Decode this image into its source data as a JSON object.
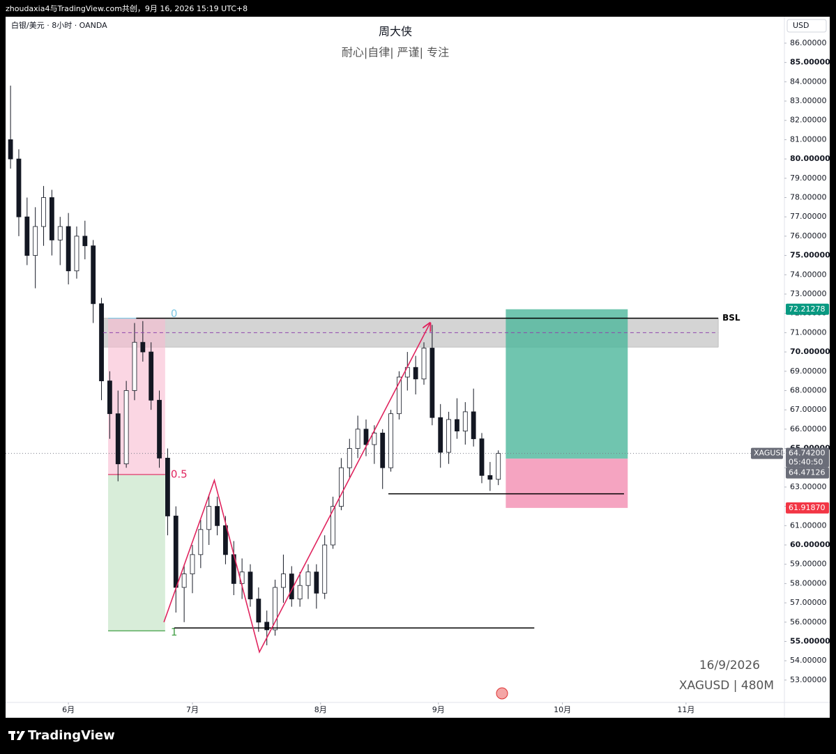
{
  "header": {
    "attribution": "zhoudaxia4与TradingView.com共创，9月 16, 2026 15:19 UTC+8",
    "symbol": "白银/美元 · 8小时 · OANDA",
    "title": "周大侠",
    "subtitle": "耐心|自律| 严谨| 专注",
    "currency": "USD"
  },
  "chart_data": {
    "type": "candlestick",
    "x": [
      -14,
      -12,
      -10,
      -8,
      -6,
      -4,
      -2,
      0,
      2,
      4,
      6,
      8,
      10,
      12,
      14,
      16,
      18,
      20,
      22,
      24,
      26,
      28,
      30,
      32,
      34,
      36,
      38,
      40,
      42,
      44,
      46,
      48,
      50,
      52,
      54,
      56,
      58,
      60,
      62,
      64,
      66,
      68,
      70,
      72,
      74,
      76,
      78,
      80,
      82,
      84,
      86,
      88,
      90,
      92,
      94,
      96,
      98,
      100,
      102,
      104
    ],
    "open": [
      81,
      80,
      77,
      75,
      76.5,
      78,
      75.8,
      76.5,
      74.2,
      76,
      75.5,
      72.5,
      68.5,
      66.8,
      64.2,
      68,
      70.5,
      70,
      67.5,
      64.5,
      61.5,
      57.8,
      58.5,
      59.5,
      60.8,
      62,
      61,
      59.5,
      58,
      58.6,
      57.2,
      56,
      55.6,
      57.8,
      58.5,
      57.2,
      57.9,
      58.6,
      57.5,
      60,
      62,
      64,
      65,
      66,
      65.2,
      65.8,
      64,
      66.8,
      68.7,
      69.2,
      68.6,
      70.2,
      66.6,
      64.8,
      66.5,
      65.9,
      66.9,
      65.5,
      63.6,
      63.4
    ],
    "high": [
      83.8,
      80.5,
      78,
      77.5,
      78.6,
      78.4,
      77,
      77.2,
      76.5,
      76.8,
      75.8,
      72.8,
      69,
      68,
      68.5,
      71.5,
      71.6,
      70.5,
      68,
      65,
      62,
      59,
      60,
      61.3,
      62.6,
      62.5,
      61.5,
      60.2,
      59.3,
      59,
      57.8,
      56.6,
      58.2,
      59.5,
      58.9,
      58.6,
      59,
      59,
      60.5,
      62.5,
      64.5,
      65.5,
      66.7,
      66.5,
      66.2,
      66,
      67,
      69,
      70,
      69.8,
      70.5,
      71.4,
      67.3,
      66.9,
      67.6,
      67.4,
      68.1,
      65.8,
      64.3,
      64.9
    ],
    "low": [
      79.5,
      76,
      74.5,
      73.3,
      75.5,
      75,
      74.5,
      73.5,
      73.8,
      74.8,
      71.5,
      67.5,
      65.5,
      63.3,
      64,
      67.5,
      69.5,
      67,
      64,
      60.5,
      56.5,
      56,
      57.5,
      58.8,
      60,
      60.5,
      59,
      57.4,
      57.2,
      56.8,
      55.5,
      54.8,
      55.3,
      57,
      56.8,
      56.8,
      57.2,
      56.7,
      57.2,
      59.8,
      61.8,
      63.5,
      64.5,
      64.6,
      64.2,
      62.9,
      63.8,
      66.5,
      68,
      67.8,
      68.3,
      66.2,
      64,
      64.2,
      65.5,
      65.2,
      65.1,
      63.2,
      62.8,
      63.1
    ],
    "close": [
      80,
      77,
      75,
      76.5,
      78,
      75.8,
      76.5,
      74.2,
      76,
      75.5,
      72.5,
      68.5,
      66.8,
      64.2,
      68,
      70.5,
      70,
      67.5,
      64.5,
      61.5,
      57.8,
      58.5,
      59.5,
      60.8,
      62,
      61,
      59.5,
      58,
      58.6,
      57.2,
      56,
      55.6,
      57.8,
      58.5,
      57.2,
      57.9,
      58.6,
      57.5,
      60,
      62,
      64,
      65,
      66,
      65.2,
      65.8,
      64,
      66.8,
      68.7,
      69.2,
      68.6,
      70.2,
      66.6,
      64.8,
      66.5,
      65.9,
      66.9,
      65.5,
      63.6,
      63.4,
      64.742
    ],
    "up_color": "#ffffff",
    "down_color": "#131722",
    "xlim": [
      -15.2,
      173.2
    ],
    "xticks": [
      {
        "value": 0,
        "label": "6月"
      },
      {
        "value": 30,
        "label": "7月"
      },
      {
        "value": 61,
        "label": "8月"
      },
      {
        "value": 89.5,
        "label": "9月"
      },
      {
        "value": 119.5,
        "label": "10月"
      },
      {
        "value": 149.4,
        "label": "11月"
      }
    ],
    "ylim": [
      51.84,
      87.37
    ],
    "yticks": [
      {
        "value": 53,
        "label": "53.00000"
      },
      {
        "value": 54,
        "label": "54.00000"
      },
      {
        "value": 55,
        "label": "55.00000"
      },
      {
        "value": 56,
        "label": "56.00000"
      },
      {
        "value": 57,
        "label": "57.00000"
      },
      {
        "value": 58,
        "label": "58.00000"
      },
      {
        "value": 59,
        "label": "59.00000"
      },
      {
        "value": 60,
        "label": "60.00000"
      },
      {
        "value": 61,
        "label": "61.00000"
      },
      {
        "value": 62,
        "label": "62.00000"
      },
      {
        "value": 63,
        "label": "63.00000"
      },
      {
        "value": 64,
        "label": "64.00000"
      },
      {
        "value": 65,
        "label": "65.00000"
      },
      {
        "value": 66,
        "label": "66.00000"
      },
      {
        "value": 67,
        "label": "67.00000"
      },
      {
        "value": 68,
        "label": "68.00000"
      },
      {
        "value": 69,
        "label": "69.00000"
      },
      {
        "value": 70,
        "label": "70.00000"
      },
      {
        "value": 71,
        "label": "71.00000"
      },
      {
        "value": 72,
        "label": "72.00000"
      },
      {
        "value": 73,
        "label": "73.00000"
      },
      {
        "value": 74,
        "label": "74.00000"
      },
      {
        "value": 75,
        "label": "75.00000"
      },
      {
        "value": 76,
        "label": "76.00000"
      },
      {
        "value": 77,
        "label": "77.00000"
      },
      {
        "value": 78,
        "label": "78.00000"
      },
      {
        "value": 79,
        "label": "79.00000"
      },
      {
        "value": 80,
        "label": "80.00000"
      },
      {
        "value": 81,
        "label": "81.00000"
      },
      {
        "value": 82,
        "label": "82.00000"
      },
      {
        "value": 83,
        "label": "83.00000"
      },
      {
        "value": 84,
        "label": "84.00000"
      },
      {
        "value": 85,
        "label": "85.00000"
      },
      {
        "value": 86,
        "label": "86.00000"
      }
    ],
    "grid": false,
    "gray_zone": {
      "x0": 8.4,
      "x1": 157.2,
      "low": 70.25,
      "high": 71.75
    },
    "bsl_line": {
      "x0": 16.4,
      "x1": 157.2,
      "price": 71.75,
      "label": "BSL"
    },
    "dashed_line": {
      "x0": 8.4,
      "x1": 157.2,
      "price": 71.0,
      "color": "#8e44ad"
    },
    "support_lines": [
      {
        "x0": 77.4,
        "x1": 134.4,
        "price": 62.65
      },
      {
        "x0": 25.6,
        "x1": 112.7,
        "price": 55.7
      }
    ],
    "fib": {
      "x0": 9.6,
      "x1": 23.4,
      "top": 71.75,
      "bottom": 55.55,
      "levels": [
        0,
        0.5,
        1
      ],
      "level_colors": [
        "#7ec8e3",
        "#e0245e",
        "#43a047"
      ]
    },
    "zigzag": {
      "color": "#e0245e",
      "x": [
        23.1,
        35.3,
        46.2,
        87.5
      ],
      "y": [
        56.0,
        63.35,
        54.45,
        71.5
      ]
    },
    "position": {
      "x0": 105.8,
      "x1": 135.3,
      "target": 72.21278,
      "entry": 64.47126,
      "stop": 61.9187
    },
    "last_price": {
      "value": 64.742,
      "label": "64.74200",
      "countdown": "05:40:50",
      "symbol": "XAGUSD"
    },
    "price_labels": [
      {
        "value": 72.21278,
        "label": "72.21278",
        "color": "#089981"
      },
      {
        "value": 64.47126,
        "label": "64.47126",
        "color": "#6a6d78"
      },
      {
        "value": 61.9187,
        "label": "61.91870",
        "color": "#f23645"
      }
    ]
  },
  "watermark": {
    "date": "16/9/2026",
    "symbol": "XAGUSD | 480M"
  },
  "footer": {
    "brand": "TradingView"
  }
}
